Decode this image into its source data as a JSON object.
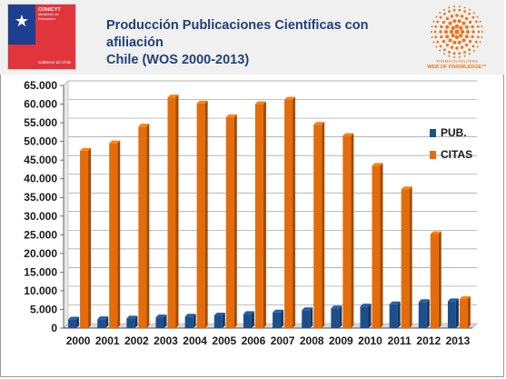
{
  "header": {
    "title_line1": "Producción Publicaciones Científicas con afiliación",
    "title_line2": "Chile (WOS 2000-2013)",
    "logo_left": {
      "org": "CONICYT",
      "sub_line1": "Ministerio de",
      "sub_line2": "Educación",
      "gov": "Gobierno de Chile"
    },
    "logo_right": {
      "small": "THOMSON REUTERS",
      "name": "WEB OF KNOWLEDGE™"
    }
  },
  "colors": {
    "pub": "#1f4e8c",
    "citas": "#e46c0a",
    "title": "#1f3f7a",
    "brand_orange": "#e8781e"
  },
  "chart_data": {
    "type": "bar",
    "categories": [
      "2000",
      "2001",
      "2002",
      "2003",
      "2004",
      "2005",
      "2006",
      "2007",
      "2008",
      "2009",
      "2010",
      "2011",
      "2012",
      "2013"
    ],
    "series": [
      {
        "name": "PUB.",
        "values": [
          2300,
          2400,
          2600,
          2900,
          3100,
          3400,
          3800,
          4200,
          4800,
          5300,
          5800,
          6400,
          7000,
          7200
        ]
      },
      {
        "name": "CITAS",
        "values": [
          47500,
          49500,
          54000,
          61800,
          60200,
          56500,
          60000,
          61200,
          54500,
          51500,
          43500,
          37200,
          25200,
          7800
        ]
      }
    ],
    "ylim": [
      0,
      65000
    ],
    "yticks": [
      0,
      5000,
      10000,
      15000,
      20000,
      25000,
      30000,
      35000,
      40000,
      45000,
      50000,
      55000,
      60000,
      65000
    ],
    "ytick_labels": [
      "0",
      "5.000",
      "10.000",
      "15.000",
      "20.000",
      "25.000",
      "30.000",
      "35.000",
      "40.000",
      "45.000",
      "50.000",
      "55.000",
      "60.000",
      "65.000"
    ],
    "grid": true,
    "legend_position": "right"
  }
}
